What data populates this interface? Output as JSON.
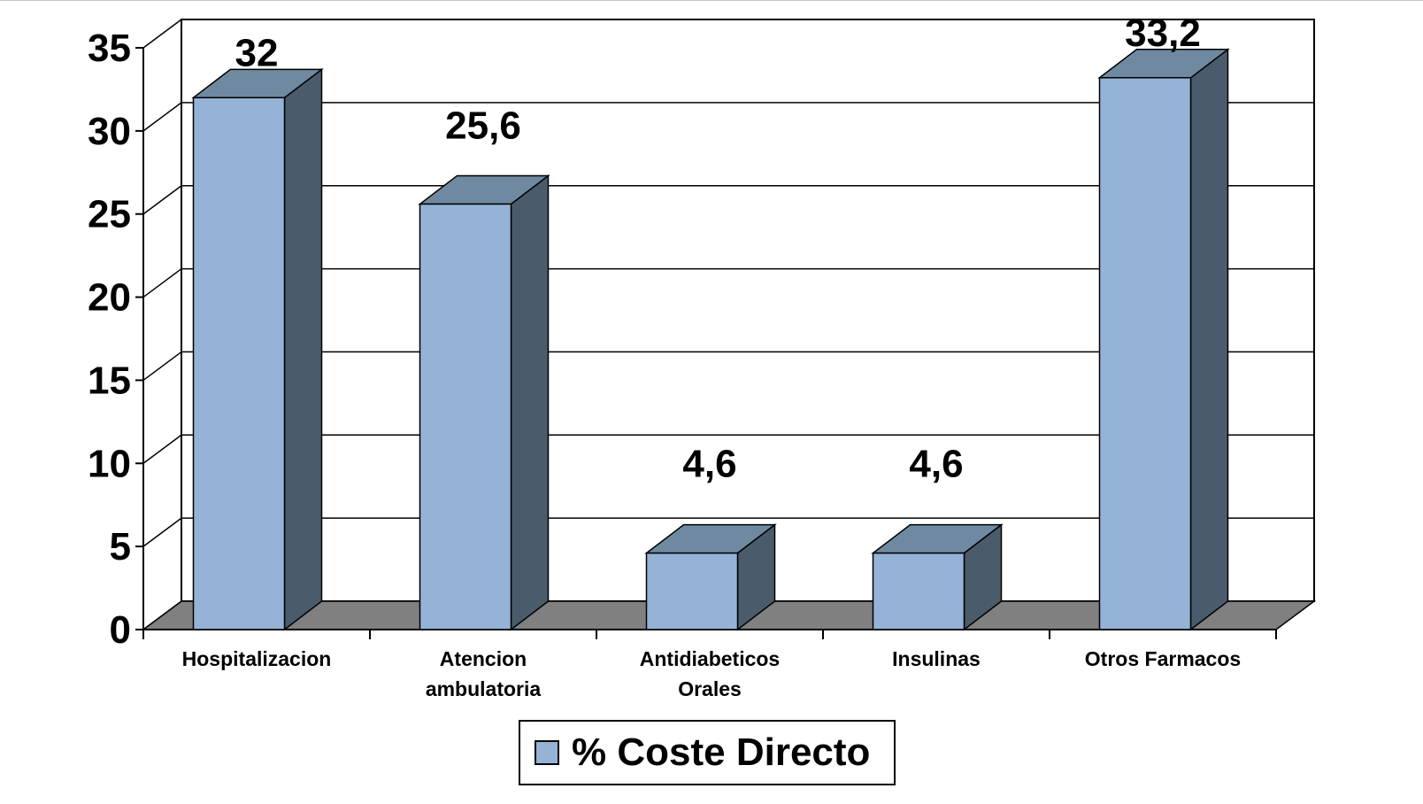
{
  "chart_data": {
    "type": "bar",
    "categories": [
      [
        "Hospitalizacion"
      ],
      [
        "Atencion",
        "ambulatoria"
      ],
      [
        "Antidiabeticos",
        "Orales"
      ],
      [
        "Insulinas"
      ],
      [
        "Otros Farmacos"
      ]
    ],
    "series": [
      {
        "name": "% Coste Directo",
        "values": [
          32,
          25.6,
          4.6,
          4.6,
          33.2
        ],
        "data_labels": [
          "32",
          "25,6",
          "4,6",
          "4,6",
          "33,2"
        ]
      }
    ],
    "ylim": [
      0,
      35
    ],
    "yticks": [
      0,
      5,
      10,
      15,
      20,
      25,
      30,
      35
    ],
    "ytick_labels": [
      "0",
      "5",
      "10",
      "15",
      "20",
      "25",
      "30",
      "35"
    ],
    "grid": true,
    "three_d": true,
    "legend": "bottom"
  },
  "colors": {
    "bar_front": "#95b3d7",
    "bar_top": "#6f8aa0",
    "bar_side": "#4a5c6c",
    "floor": "#808080",
    "grid": "#000000"
  }
}
